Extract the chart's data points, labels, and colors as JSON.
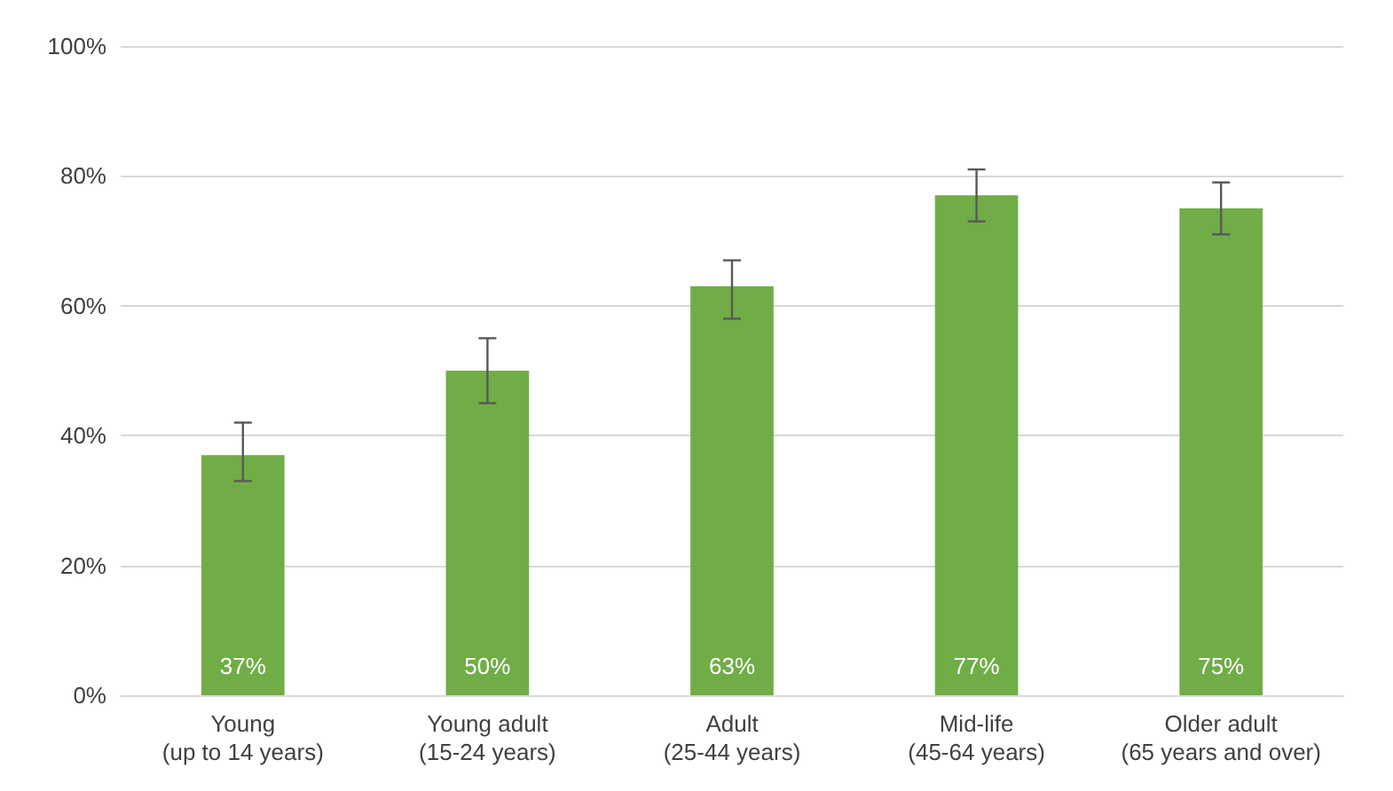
{
  "chart_data": {
    "type": "bar",
    "categories": [
      "Young\n(up to 14 years)",
      "Young adult\n(15-24 years)",
      "Adult\n(25-44 years)",
      "Mid-life\n(45-64 years)",
      "Older adult\n(65 years and over)"
    ],
    "values": [
      37,
      50,
      63,
      77,
      75
    ],
    "value_labels": [
      "37%",
      "50%",
      "63%",
      "77%",
      "75%"
    ],
    "errors": [
      [
        33,
        42
      ],
      [
        45,
        55
      ],
      [
        58,
        67
      ],
      [
        73,
        81
      ],
      [
        71,
        79
      ]
    ],
    "color": "#70ad47",
    "ylim": [
      0,
      100
    ],
    "yticks": [
      {
        "value": 0,
        "label": "0%"
      },
      {
        "value": 20,
        "label": "20%"
      },
      {
        "value": 40,
        "label": "40%"
      },
      {
        "value": 60,
        "label": "60%"
      },
      {
        "value": 80,
        "label": "80%"
      },
      {
        "value": 100,
        "label": "100%"
      }
    ],
    "grid": "y"
  }
}
